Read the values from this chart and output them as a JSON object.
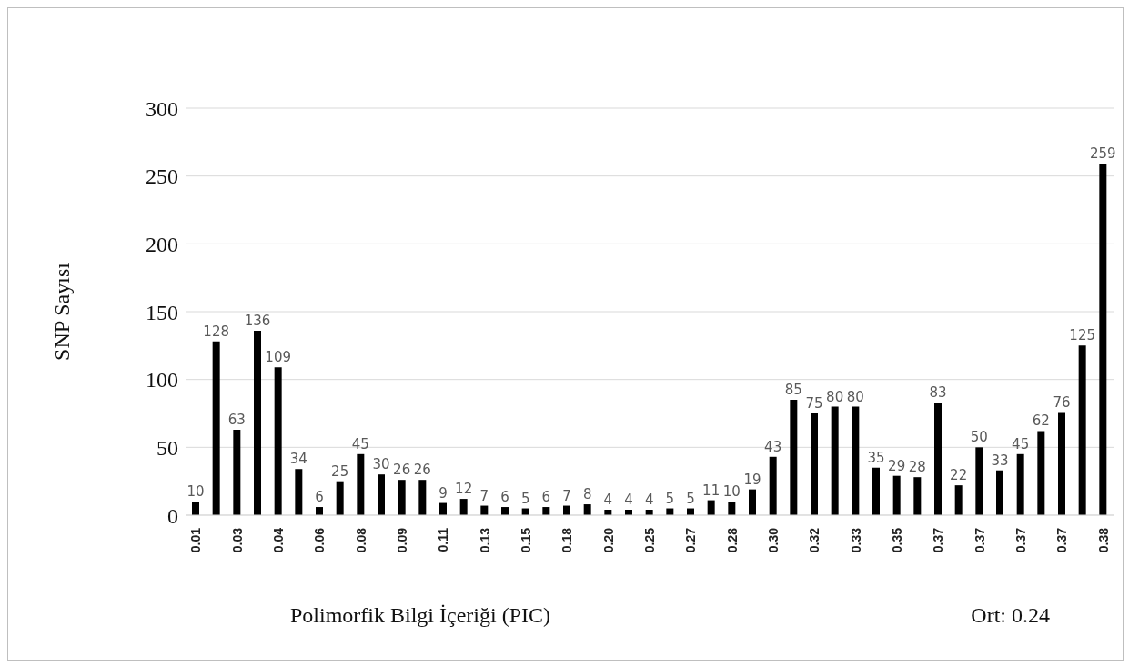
{
  "chart_data": {
    "type": "bar",
    "xlabel": "Polimorfik Bilgi İçeriği (PIC)",
    "ylabel": "SNP Sayısı",
    "annotations": [
      "Ort: 0.24"
    ],
    "categories": [
      "0.01",
      null,
      "0.03",
      null,
      "0.04",
      null,
      "0.06",
      null,
      "0.08",
      null,
      "0.09",
      null,
      "0.11",
      null,
      "0.13",
      null,
      "0.15",
      null,
      "0.18",
      null,
      "0.20",
      null,
      "0.25",
      null,
      "0.27",
      null,
      "0.28",
      null,
      "0.30",
      null,
      "0.32",
      null,
      "0.33",
      null,
      "0.35",
      null,
      "0.37",
      null,
      "0.37",
      null,
      "0.37",
      null,
      "0.37",
      null,
      "0.38"
    ],
    "values": [
      10,
      128,
      63,
      136,
      109,
      34,
      6,
      25,
      45,
      30,
      26,
      26,
      9,
      12,
      7,
      6,
      5,
      6,
      7,
      8,
      4,
      4,
      4,
      5,
      5,
      11,
      10,
      19,
      43,
      85,
      75,
      80,
      80,
      35,
      29,
      28,
      83,
      22,
      50,
      33,
      45,
      62,
      76,
      125,
      259
    ],
    "color": "#000000",
    "ylim": [
      0,
      300
    ],
    "yticks": [
      0,
      50,
      100,
      150,
      200,
      250,
      300
    ],
    "grid": "y",
    "data_labels": true
  }
}
